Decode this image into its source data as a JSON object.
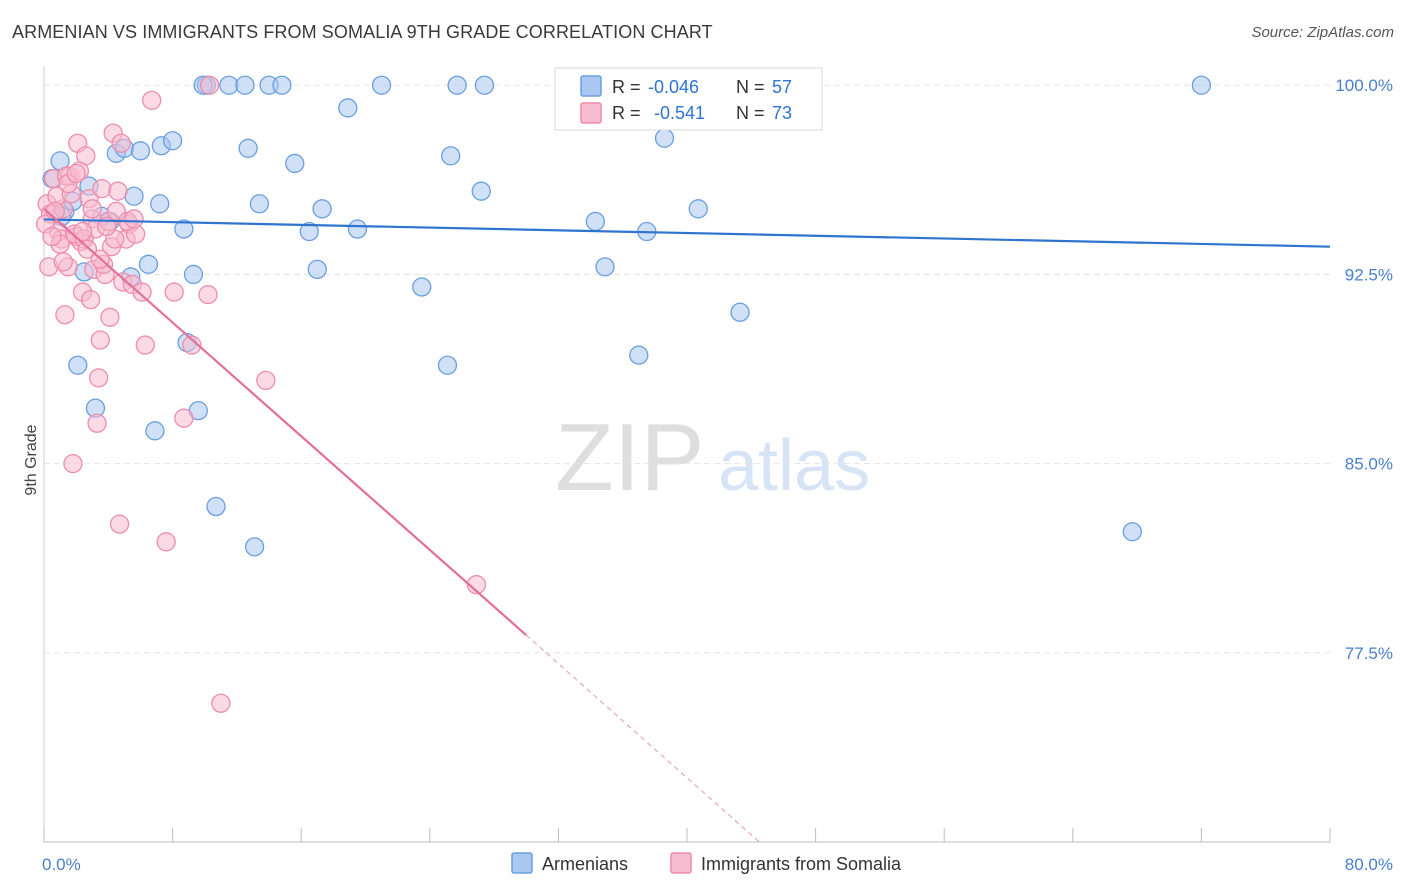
{
  "header": {
    "title": "ARMENIAN VS IMMIGRANTS FROM SOMALIA 9TH GRADE CORRELATION CHART",
    "source": "Source: ZipAtlas.com"
  },
  "watermark": {
    "zip": "ZIP",
    "atlas": "atlas"
  },
  "colors": {
    "blue_fill": "#a9c7f0",
    "blue_stroke": "#6a9fdf",
    "blue_line": "#2f74cf",
    "pink_fill": "#f7bccf",
    "pink_stroke": "#ee8cab",
    "pink_line": "#e2709a",
    "axis_text": "#4a7fcb",
    "grid": "#e4e4e4"
  },
  "legend": {
    "rows": [
      {
        "r_label": "R =",
        "r_value": "-0.046",
        "n_label": "N =",
        "n_value": "57"
      },
      {
        "r_label": "R =",
        "r_value": "-0.541",
        "n_label": "N =",
        "n_value": "73"
      }
    ]
  },
  "chart_data": {
    "type": "scatter",
    "title": "ARMENIAN VS IMMIGRANTS FROM SOMALIA 9TH GRADE CORRELATION CHART",
    "xlabel": "",
    "ylabel": "9th Grade",
    "xlim": [
      0,
      80
    ],
    "ylim": [
      70,
      101
    ],
    "x_tick_labels": [
      "0.0%",
      "80.0%"
    ],
    "y_ticks": [
      77.5,
      85.0,
      92.5,
      100.0
    ],
    "y_tick_labels": [
      "77.5%",
      "85.0%",
      "92.5%",
      "100.0%"
    ],
    "grid": true,
    "legend_position": "bottom-center",
    "series": [
      {
        "name": "Armenians",
        "color": "#a9c7f0",
        "points": [
          [
            0.5,
            96.3
          ],
          [
            1.0,
            97.0
          ],
          [
            1.3,
            95.0
          ],
          [
            1.8,
            95.4
          ],
          [
            2.5,
            92.6
          ],
          [
            2.8,
            96.0
          ],
          [
            3.2,
            87.2
          ],
          [
            4.1,
            94.6
          ],
          [
            4.5,
            97.3
          ],
          [
            5.0,
            97.5
          ],
          [
            5.4,
            92.4
          ],
          [
            6.0,
            97.4
          ],
          [
            6.9,
            86.3
          ],
          [
            7.2,
            95.3
          ],
          [
            7.3,
            97.6
          ],
          [
            8.0,
            97.8
          ],
          [
            8.7,
            94.3
          ],
          [
            8.9,
            89.8
          ],
          [
            9.3,
            92.5
          ],
          [
            9.6,
            87.1
          ],
          [
            10.1,
            100.0
          ],
          [
            10.7,
            83.3
          ],
          [
            11.5,
            100.0
          ],
          [
            12.5,
            100.0
          ],
          [
            12.7,
            97.5
          ],
          [
            13.1,
            81.7
          ],
          [
            13.4,
            95.3
          ],
          [
            14.0,
            100.0
          ],
          [
            15.6,
            96.9
          ],
          [
            16.5,
            94.2
          ],
          [
            17.0,
            92.7
          ],
          [
            17.3,
            95.1
          ],
          [
            18.9,
            99.1
          ],
          [
            19.5,
            94.3
          ],
          [
            23.5,
            92.0
          ],
          [
            25.1,
            88.9
          ],
          [
            25.3,
            97.2
          ],
          [
            25.7,
            100.0
          ],
          [
            27.2,
            95.8
          ],
          [
            27.4,
            100.0
          ],
          [
            34.3,
            94.6
          ],
          [
            34.9,
            92.8
          ],
          [
            37.0,
            89.3
          ],
          [
            37.5,
            94.2
          ],
          [
            38.6,
            97.9
          ],
          [
            40.7,
            95.1
          ],
          [
            43.3,
            91.0
          ],
          [
            67.7,
            82.3
          ],
          [
            72.0,
            100.0
          ],
          [
            5.6,
            95.6
          ],
          [
            9.9,
            100.0
          ],
          [
            14.8,
            100.0
          ],
          [
            21.0,
            100.0
          ],
          [
            3.6,
            94.8
          ],
          [
            6.5,
            92.9
          ],
          [
            2.1,
            88.9
          ],
          [
            1.1,
            94.8
          ]
        ]
      },
      {
        "name": "Immigrants from Somalia",
        "color": "#f7bccf",
        "points": [
          [
            0.2,
            95.3
          ],
          [
            0.4,
            94.9
          ],
          [
            0.6,
            96.3
          ],
          [
            0.9,
            94.2
          ],
          [
            1.1,
            93.9
          ],
          [
            1.2,
            95.1
          ],
          [
            1.3,
            90.9
          ],
          [
            1.5,
            92.8
          ],
          [
            1.6,
            96.4
          ],
          [
            1.8,
            85.0
          ],
          [
            2.0,
            94.0
          ],
          [
            2.1,
            97.7
          ],
          [
            2.3,
            93.8
          ],
          [
            2.4,
            91.8
          ],
          [
            2.6,
            97.2
          ],
          [
            2.8,
            95.5
          ],
          [
            2.9,
            91.5
          ],
          [
            3.0,
            94.7
          ],
          [
            3.1,
            92.7
          ],
          [
            3.2,
            94.3
          ],
          [
            3.4,
            88.4
          ],
          [
            3.5,
            89.9
          ],
          [
            3.6,
            95.9
          ],
          [
            3.8,
            92.5
          ],
          [
            4.0,
            94.6
          ],
          [
            4.1,
            90.8
          ],
          [
            4.2,
            93.6
          ],
          [
            4.3,
            98.1
          ],
          [
            4.5,
            95.0
          ],
          [
            4.7,
            82.6
          ],
          [
            4.9,
            92.2
          ],
          [
            5.1,
            93.9
          ],
          [
            5.3,
            94.5
          ],
          [
            5.5,
            92.1
          ],
          [
            5.7,
            94.1
          ],
          [
            6.1,
            91.8
          ],
          [
            6.3,
            89.7
          ],
          [
            6.7,
            99.4
          ],
          [
            7.6,
            81.9
          ],
          [
            8.1,
            91.8
          ],
          [
            8.7,
            86.8
          ],
          [
            9.2,
            89.7
          ],
          [
            10.2,
            91.7
          ],
          [
            10.3,
            100.0
          ],
          [
            11.0,
            75.5
          ],
          [
            13.8,
            88.3
          ],
          [
            26.9,
            80.2
          ],
          [
            0.3,
            92.8
          ],
          [
            0.8,
            95.6
          ],
          [
            1.0,
            93.7
          ],
          [
            1.4,
            96.4
          ],
          [
            1.7,
            95.7
          ],
          [
            1.9,
            94.1
          ],
          [
            2.2,
            96.6
          ],
          [
            2.5,
            93.9
          ],
          [
            2.7,
            93.5
          ],
          [
            3.3,
            86.6
          ],
          [
            3.7,
            92.9
          ],
          [
            4.4,
            93.9
          ],
          [
            4.6,
            95.8
          ],
          [
            4.8,
            97.7
          ],
          [
            5.2,
            94.6
          ],
          [
            0.1,
            94.5
          ],
          [
            0.7,
            95.0
          ],
          [
            1.5,
            96.1
          ],
          [
            2.0,
            96.5
          ],
          [
            3.0,
            95.1
          ],
          [
            3.9,
            94.4
          ],
          [
            5.6,
            94.7
          ],
          [
            0.5,
            94.0
          ],
          [
            1.2,
            93.0
          ],
          [
            2.4,
            94.2
          ],
          [
            3.5,
            93.1
          ]
        ]
      }
    ],
    "trendlines": [
      {
        "series": "Armenians",
        "x1": 0,
        "y1": 94.68,
        "x2": 80,
        "y2": 93.6,
        "dashed_extension": null
      },
      {
        "series": "Immigrants from Somalia",
        "x1": 0,
        "y1": 95.1,
        "x2": 30,
        "y2": 78.2,
        "dashed_extension": {
          "x2": 44.5,
          "y2": 70.0
        }
      }
    ]
  }
}
